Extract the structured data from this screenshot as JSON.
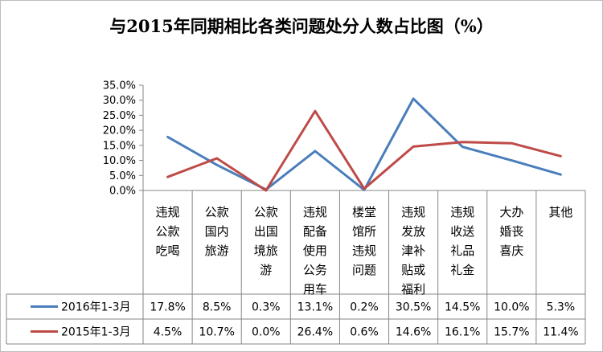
{
  "chart_data": {
    "type": "line",
    "title": "与2015年同期相比各类问题处分人数占比图（%）",
    "categories": [
      "违规公款吃喝",
      "公款国内旅游",
      "公款出国境旅游",
      "违规配备使用公务用车",
      "楼堂馆所违规问题",
      "违规发放津补贴或福利",
      "违规收送礼品礼金",
      "大办婚丧喜庆",
      "其他"
    ],
    "category_lines": [
      [
        "违规",
        "公款",
        "吃喝"
      ],
      [
        "公款",
        "国内",
        "旅游"
      ],
      [
        "公款",
        "出国",
        "境旅",
        "游"
      ],
      [
        "违规",
        "配备",
        "使用",
        "公务",
        "用车"
      ],
      [
        "楼堂",
        "馆所",
        "违规",
        "问题"
      ],
      [
        "违规",
        "发放",
        "津补",
        "贴或",
        "福利"
      ],
      [
        "违规",
        "收送",
        "礼品",
        "礼金"
      ],
      [
        "大办",
        "婚丧",
        "喜庆"
      ],
      [
        "其他"
      ]
    ],
    "series": [
      {
        "name": "2016年1-3月",
        "color": "#4a7ebb",
        "values": [
          17.8,
          8.5,
          0.3,
          13.1,
          0.2,
          30.5,
          14.5,
          10.0,
          5.3
        ],
        "labels": [
          "17.8%",
          "8.5%",
          "0.3%",
          "13.1%",
          "0.2%",
          "30.5%",
          "14.5%",
          "10.0%",
          "5.3%"
        ]
      },
      {
        "name": "2015年1-3月",
        "color": "#be4b48",
        "values": [
          4.5,
          10.7,
          0.0,
          26.4,
          0.6,
          14.6,
          16.1,
          15.7,
          11.4
        ],
        "labels": [
          "4.5%",
          "10.7%",
          "0.0%",
          "26.4%",
          "0.6%",
          "14.6%",
          "16.1%",
          "15.7%",
          "11.4%"
        ]
      }
    ],
    "ylim": [
      0,
      35
    ],
    "yticks": [
      "0.0%",
      "5.0%",
      "10.0%",
      "15.0%",
      "20.0%",
      "25.0%",
      "30.0%",
      "35.0%"
    ],
    "legend": "data-table",
    "grid": false
  }
}
